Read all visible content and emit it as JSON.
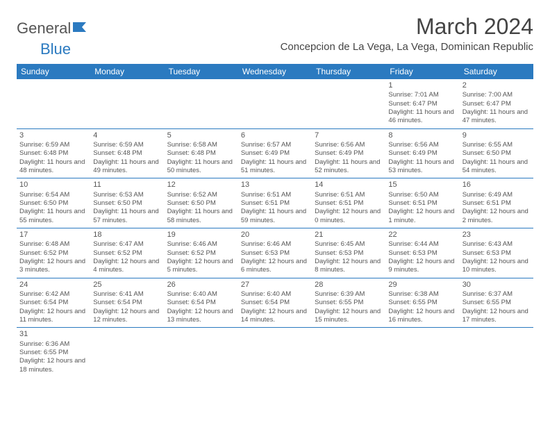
{
  "logo": {
    "part1": "General",
    "part2": "Blue"
  },
  "title": "March 2024",
  "location": "Concepcion de La Vega, La Vega, Dominican Republic",
  "colors": {
    "header_bg": "#2b7ac0",
    "header_fg": "#ffffff",
    "border": "#2b7ac0",
    "text": "#555555"
  },
  "daynames": [
    "Sunday",
    "Monday",
    "Tuesday",
    "Wednesday",
    "Thursday",
    "Friday",
    "Saturday"
  ],
  "weeks": [
    [
      null,
      null,
      null,
      null,
      null,
      {
        "d": "1",
        "sr": "7:01 AM",
        "ss": "6:47 PM",
        "dl": "11 hours and 46 minutes."
      },
      {
        "d": "2",
        "sr": "7:00 AM",
        "ss": "6:47 PM",
        "dl": "11 hours and 47 minutes."
      }
    ],
    [
      {
        "d": "3",
        "sr": "6:59 AM",
        "ss": "6:48 PM",
        "dl": "11 hours and 48 minutes."
      },
      {
        "d": "4",
        "sr": "6:59 AM",
        "ss": "6:48 PM",
        "dl": "11 hours and 49 minutes."
      },
      {
        "d": "5",
        "sr": "6:58 AM",
        "ss": "6:48 PM",
        "dl": "11 hours and 50 minutes."
      },
      {
        "d": "6",
        "sr": "6:57 AM",
        "ss": "6:49 PM",
        "dl": "11 hours and 51 minutes."
      },
      {
        "d": "7",
        "sr": "6:56 AM",
        "ss": "6:49 PM",
        "dl": "11 hours and 52 minutes."
      },
      {
        "d": "8",
        "sr": "6:56 AM",
        "ss": "6:49 PM",
        "dl": "11 hours and 53 minutes."
      },
      {
        "d": "9",
        "sr": "6:55 AM",
        "ss": "6:50 PM",
        "dl": "11 hours and 54 minutes."
      }
    ],
    [
      {
        "d": "10",
        "sr": "6:54 AM",
        "ss": "6:50 PM",
        "dl": "11 hours and 55 minutes."
      },
      {
        "d": "11",
        "sr": "6:53 AM",
        "ss": "6:50 PM",
        "dl": "11 hours and 57 minutes."
      },
      {
        "d": "12",
        "sr": "6:52 AM",
        "ss": "6:50 PM",
        "dl": "11 hours and 58 minutes."
      },
      {
        "d": "13",
        "sr": "6:51 AM",
        "ss": "6:51 PM",
        "dl": "11 hours and 59 minutes."
      },
      {
        "d": "14",
        "sr": "6:51 AM",
        "ss": "6:51 PM",
        "dl": "12 hours and 0 minutes."
      },
      {
        "d": "15",
        "sr": "6:50 AM",
        "ss": "6:51 PM",
        "dl": "12 hours and 1 minute."
      },
      {
        "d": "16",
        "sr": "6:49 AM",
        "ss": "6:51 PM",
        "dl": "12 hours and 2 minutes."
      }
    ],
    [
      {
        "d": "17",
        "sr": "6:48 AM",
        "ss": "6:52 PM",
        "dl": "12 hours and 3 minutes."
      },
      {
        "d": "18",
        "sr": "6:47 AM",
        "ss": "6:52 PM",
        "dl": "12 hours and 4 minutes."
      },
      {
        "d": "19",
        "sr": "6:46 AM",
        "ss": "6:52 PM",
        "dl": "12 hours and 5 minutes."
      },
      {
        "d": "20",
        "sr": "6:46 AM",
        "ss": "6:53 PM",
        "dl": "12 hours and 6 minutes."
      },
      {
        "d": "21",
        "sr": "6:45 AM",
        "ss": "6:53 PM",
        "dl": "12 hours and 8 minutes."
      },
      {
        "d": "22",
        "sr": "6:44 AM",
        "ss": "6:53 PM",
        "dl": "12 hours and 9 minutes."
      },
      {
        "d": "23",
        "sr": "6:43 AM",
        "ss": "6:53 PM",
        "dl": "12 hours and 10 minutes."
      }
    ],
    [
      {
        "d": "24",
        "sr": "6:42 AM",
        "ss": "6:54 PM",
        "dl": "12 hours and 11 minutes."
      },
      {
        "d": "25",
        "sr": "6:41 AM",
        "ss": "6:54 PM",
        "dl": "12 hours and 12 minutes."
      },
      {
        "d": "26",
        "sr": "6:40 AM",
        "ss": "6:54 PM",
        "dl": "12 hours and 13 minutes."
      },
      {
        "d": "27",
        "sr": "6:40 AM",
        "ss": "6:54 PM",
        "dl": "12 hours and 14 minutes."
      },
      {
        "d": "28",
        "sr": "6:39 AM",
        "ss": "6:55 PM",
        "dl": "12 hours and 15 minutes."
      },
      {
        "d": "29",
        "sr": "6:38 AM",
        "ss": "6:55 PM",
        "dl": "12 hours and 16 minutes."
      },
      {
        "d": "30",
        "sr": "6:37 AM",
        "ss": "6:55 PM",
        "dl": "12 hours and 17 minutes."
      }
    ],
    [
      {
        "d": "31",
        "sr": "6:36 AM",
        "ss": "6:55 PM",
        "dl": "12 hours and 18 minutes."
      },
      null,
      null,
      null,
      null,
      null,
      null
    ]
  ]
}
